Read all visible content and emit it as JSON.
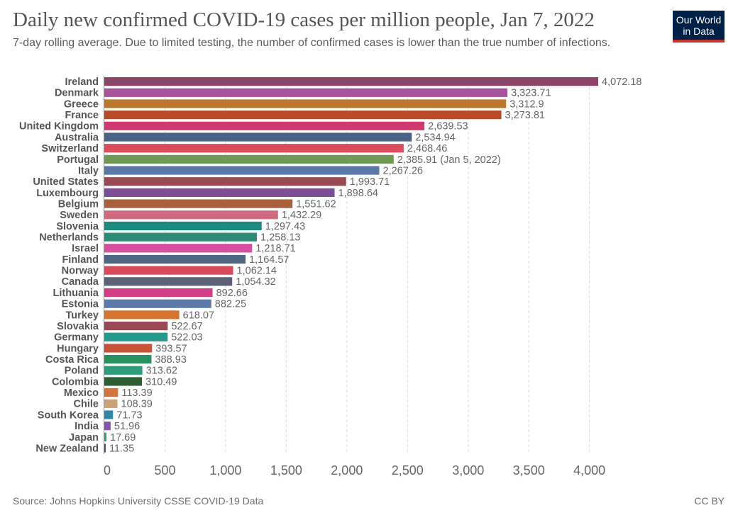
{
  "title": "Daily new confirmed COVID-19 cases per million people, Jan 7, 2022",
  "subtitle": "7-day rolling average. Due to limited testing, the number of confirmed cases is lower than the true number of infections.",
  "logo": {
    "line1": "Our World",
    "line2": "in Data",
    "bg_color": "#002147",
    "bar_color": "#c5332e"
  },
  "source": "Source: Johns Hopkins University CSSE COVID-19 Data",
  "license": "CC BY",
  "chart_data": {
    "type": "bar",
    "orientation": "horizontal",
    "xlim": [
      0,
      4072.18
    ],
    "x_ticks": [
      0,
      500,
      1000,
      1500,
      2000,
      2500,
      3000,
      3500,
      4000
    ],
    "x_tick_labels": [
      "0",
      "500",
      "1,000",
      "1,500",
      "2,000",
      "2,500",
      "3,000",
      "3,500",
      "4,000"
    ],
    "grid": "vertical dashed",
    "bars": [
      {
        "country": "Ireland",
        "value": 4072.18,
        "label": "4,072.18",
        "color": "#8c4569"
      },
      {
        "country": "Denmark",
        "value": 3323.71,
        "label": "3,323.71",
        "color": "#a6559a"
      },
      {
        "country": "Greece",
        "value": 3312.9,
        "label": "3,312.9",
        "color": "#bc782d"
      },
      {
        "country": "France",
        "value": 3273.81,
        "label": "3,273.81",
        "color": "#b84a27"
      },
      {
        "country": "United Kingdom",
        "value": 2639.53,
        "label": "2,639.53",
        "color": "#d13a70"
      },
      {
        "country": "Australia",
        "value": 2534.94,
        "label": "2,534.94",
        "color": "#4a6283"
      },
      {
        "country": "Switzerland",
        "value": 2468.46,
        "label": "2,468.46",
        "color": "#db4c5d"
      },
      {
        "country": "Portugal",
        "value": 2385.91,
        "label": "2,385.91 (Jan 5, 2022)",
        "color": "#6f9a55"
      },
      {
        "country": "Italy",
        "value": 2267.26,
        "label": "2,267.26",
        "color": "#5b79a8"
      },
      {
        "country": "United States",
        "value": 1993.71,
        "label": "1,993.71",
        "color": "#9a4a55"
      },
      {
        "country": "Luxembourg",
        "value": 1898.64,
        "label": "1,898.64",
        "color": "#7a4f96"
      },
      {
        "country": "Belgium",
        "value": 1551.62,
        "label": "1,551.62",
        "color": "#a8603a"
      },
      {
        "country": "Sweden",
        "value": 1432.29,
        "label": "1,432.29",
        "color": "#cf6a80"
      },
      {
        "country": "Slovenia",
        "value": 1297.43,
        "label": "1,297.43",
        "color": "#1e8b80"
      },
      {
        "country": "Netherlands",
        "value": 1258.13,
        "label": "1,258.13",
        "color": "#2e8c76"
      },
      {
        "country": "Israel",
        "value": 1218.71,
        "label": "1,218.71",
        "color": "#d44fa0"
      },
      {
        "country": "Finland",
        "value": 1164.57,
        "label": "1,164.57",
        "color": "#4f6680"
      },
      {
        "country": "Norway",
        "value": 1062.14,
        "label": "1,062.14",
        "color": "#d84a5c"
      },
      {
        "country": "Canada",
        "value": 1054.32,
        "label": "1,054.32",
        "color": "#5c6178"
      },
      {
        "country": "Lithuania",
        "value": 892.66,
        "label": "892.66",
        "color": "#d23f86"
      },
      {
        "country": "Estonia",
        "value": 882.25,
        "label": "882.25",
        "color": "#5b7aa8"
      },
      {
        "country": "Turkey",
        "value": 618.07,
        "label": "618.07",
        "color": "#d4742e"
      },
      {
        "country": "Slovakia",
        "value": 522.67,
        "label": "522.67",
        "color": "#9a4756"
      },
      {
        "country": "Germany",
        "value": 522.03,
        "label": "522.03",
        "color": "#26998c"
      },
      {
        "country": "Hungary",
        "value": 393.57,
        "label": "393.57",
        "color": "#c75436"
      },
      {
        "country": "Costa Rica",
        "value": 388.93,
        "label": "388.93",
        "color": "#2a9060"
      },
      {
        "country": "Poland",
        "value": 313.62,
        "label": "313.62",
        "color": "#2b9e7c"
      },
      {
        "country": "Colombia",
        "value": 310.49,
        "label": "310.49",
        "color": "#2f5e34"
      },
      {
        "country": "Mexico",
        "value": 113.39,
        "label": "113.39",
        "color": "#d07540"
      },
      {
        "country": "Chile",
        "value": 108.39,
        "label": "108.39",
        "color": "#c9a27a"
      },
      {
        "country": "South Korea",
        "value": 71.73,
        "label": "71.73",
        "color": "#2f86a8"
      },
      {
        "country": "India",
        "value": 51.96,
        "label": "51.96",
        "color": "#8454a6"
      },
      {
        "country": "Japan",
        "value": 17.69,
        "label": "17.69",
        "color": "#2ea36a"
      },
      {
        "country": "New Zealand",
        "value": 11.35,
        "label": "11.35",
        "color": "#4b4b6b"
      }
    ]
  }
}
